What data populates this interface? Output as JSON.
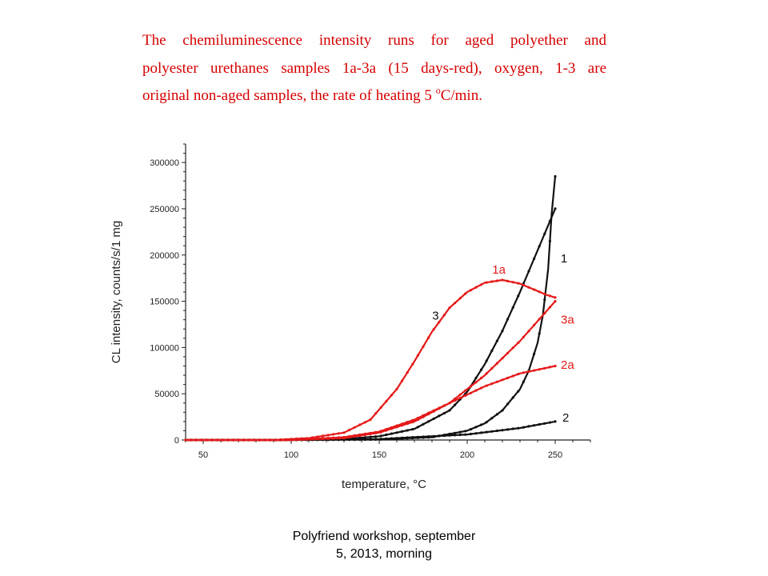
{
  "caption": {
    "line1": "The chemiluminescence intensity runs for aged polyether and",
    "line2": "polyester urethanes samples 1a-3a (15 days-red), oxygen, 1-3 are",
    "line3_pre": "original non-aged samples, the rate of heating 5",
    "line3_sup": "o",
    "line3_post": "C/min."
  },
  "footer": {
    "line1": "Polyfriend workshop, september",
    "line2": "5, 2013, morning"
  },
  "colors": {
    "aged": "#e41a1a",
    "original": "#111111"
  },
  "chart_data": {
    "type": "line",
    "xlabel": "temperature, °C",
    "ylabel": "CL intensity, counts/s/1 mg",
    "xlim": [
      40,
      270
    ],
    "ylim": [
      0,
      320000
    ],
    "x_ticks": [
      50,
      100,
      150,
      200,
      250
    ],
    "y_ticks": [
      0,
      50000,
      100000,
      150000,
      200000,
      250000,
      300000
    ],
    "grid": false,
    "legend": "none (curves labelled directly)",
    "series": [
      {
        "name": "1",
        "color": "#111111",
        "x": [
          40,
          100,
          150,
          180,
          200,
          210,
          220,
          230,
          235,
          240,
          243,
          246,
          248,
          250
        ],
        "y": [
          0,
          0,
          500,
          3000,
          10000,
          18000,
          32000,
          55000,
          75000,
          105000,
          135000,
          185000,
          245000,
          285000
        ]
      },
      {
        "name": "2",
        "color": "#111111",
        "x": [
          40,
          100,
          150,
          200,
          230,
          250
        ],
        "y": [
          0,
          0,
          1000,
          6000,
          13000,
          20000
        ]
      },
      {
        "name": "3",
        "color": "#111111",
        "x": [
          40,
          100,
          130,
          150,
          170,
          190,
          200,
          210,
          220,
          230,
          240,
          250
        ],
        "y": [
          0,
          0,
          1000,
          4000,
          12000,
          32000,
          52000,
          82000,
          118000,
          160000,
          205000,
          250000
        ]
      },
      {
        "name": "1a",
        "color": "#e41a1a",
        "x": [
          40,
          90,
          110,
          130,
          145,
          160,
          170,
          180,
          190,
          200,
          210,
          220,
          230,
          240,
          245,
          250
        ],
        "y": [
          0,
          0,
          2000,
          8000,
          22000,
          55000,
          85000,
          117000,
          143000,
          160000,
          170000,
          173000,
          169000,
          161000,
          157000,
          154000
        ]
      },
      {
        "name": "2a",
        "color": "#e41a1a",
        "x": [
          40,
          100,
          130,
          150,
          170,
          190,
          210,
          230,
          250
        ],
        "y": [
          0,
          0,
          3000,
          9000,
          22000,
          40000,
          58000,
          72000,
          80000
        ]
      },
      {
        "name": "3a",
        "color": "#e41a1a",
        "x": [
          40,
          100,
          130,
          150,
          170,
          190,
          210,
          230,
          250
        ],
        "y": [
          0,
          0,
          2000,
          8000,
          20000,
          40000,
          70000,
          107000,
          150000
        ]
      }
    ],
    "annotations": [
      {
        "text": "1",
        "x": 255,
        "y": 192000,
        "color": "#111111"
      },
      {
        "text": "2",
        "x": 256,
        "y": 20000,
        "color": "#111111"
      },
      {
        "text": "3",
        "x": 182,
        "y": 130000,
        "color": "#111111"
      },
      {
        "text": "1a",
        "x": 218,
        "y": 180000,
        "color": "#e41a1a"
      },
      {
        "text": "2a",
        "x": 257,
        "y": 77000,
        "color": "#e41a1a"
      },
      {
        "text": "3a",
        "x": 257,
        "y": 126000,
        "color": "#e41a1a"
      }
    ]
  }
}
